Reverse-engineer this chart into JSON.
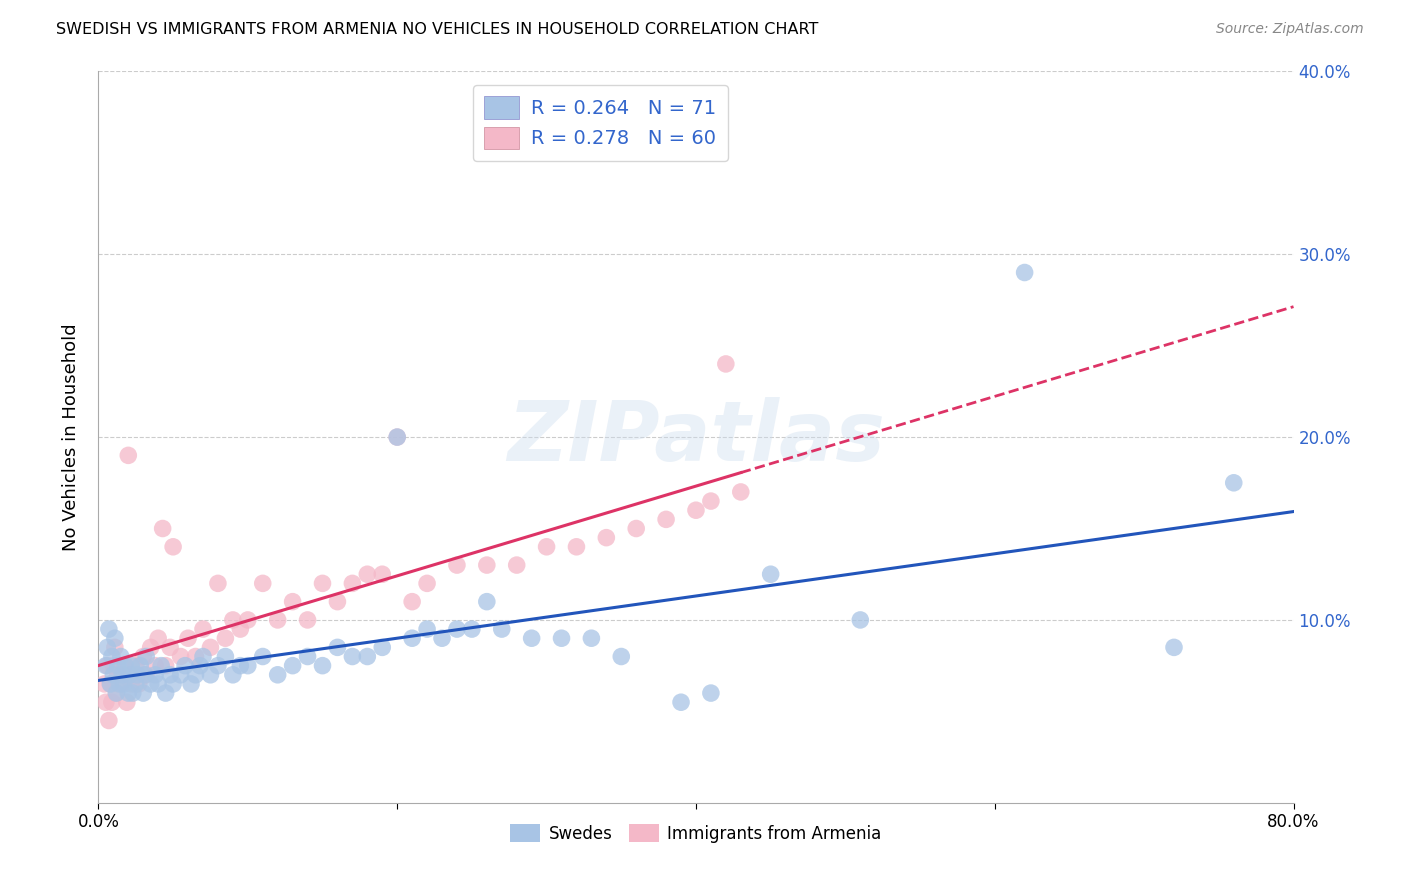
{
  "title": "SWEDISH VS IMMIGRANTS FROM ARMENIA NO VEHICLES IN HOUSEHOLD CORRELATION CHART",
  "source": "Source: ZipAtlas.com",
  "ylabel": "No Vehicles in Household",
  "xlim": [
    0,
    0.8
  ],
  "ylim": [
    0,
    0.4
  ],
  "xticks": [
    0.0,
    0.2,
    0.4,
    0.6,
    0.8
  ],
  "xticklabels_ends": {
    "0.0": "0.0%",
    "0.8": "80.0%"
  },
  "yticks": [
    0.0,
    0.1,
    0.2,
    0.3,
    0.4
  ],
  "right_yticklabels": [
    "",
    "10.0%",
    "20.0%",
    "30.0%",
    "40.0%"
  ],
  "blue_R": 0.264,
  "blue_N": 71,
  "pink_R": 0.278,
  "pink_N": 60,
  "blue_color": "#a8c4e5",
  "pink_color": "#f4b8c8",
  "blue_line_color": "#2255bb",
  "pink_line_color": "#dd3366",
  "legend_blue_label": "Swedes",
  "legend_pink_label": "Immigrants from Armenia",
  "watermark_text": "ZIPatlas",
  "grid_color": "#cccccc",
  "tick_label_color": "#3366cc",
  "blue_scatter_x": [
    0.005,
    0.006,
    0.007,
    0.008,
    0.009,
    0.01,
    0.011,
    0.012,
    0.013,
    0.014,
    0.015,
    0.016,
    0.017,
    0.018,
    0.02,
    0.021,
    0.022,
    0.023,
    0.025,
    0.026,
    0.028,
    0.03,
    0.031,
    0.032,
    0.035,
    0.038,
    0.04,
    0.042,
    0.045,
    0.048,
    0.05,
    0.055,
    0.058,
    0.062,
    0.065,
    0.068,
    0.07,
    0.075,
    0.08,
    0.085,
    0.09,
    0.095,
    0.1,
    0.11,
    0.12,
    0.13,
    0.14,
    0.15,
    0.16,
    0.17,
    0.18,
    0.19,
    0.2,
    0.21,
    0.22,
    0.23,
    0.24,
    0.25,
    0.26,
    0.27,
    0.29,
    0.31,
    0.33,
    0.35,
    0.39,
    0.41,
    0.45,
    0.51,
    0.62,
    0.72,
    0.76
  ],
  "blue_scatter_y": [
    0.075,
    0.085,
    0.095,
    0.065,
    0.08,
    0.07,
    0.09,
    0.06,
    0.075,
    0.065,
    0.08,
    0.07,
    0.065,
    0.075,
    0.06,
    0.07,
    0.075,
    0.06,
    0.065,
    0.07,
    0.075,
    0.06,
    0.07,
    0.08,
    0.065,
    0.07,
    0.065,
    0.075,
    0.06,
    0.07,
    0.065,
    0.07,
    0.075,
    0.065,
    0.07,
    0.075,
    0.08,
    0.07,
    0.075,
    0.08,
    0.07,
    0.075,
    0.075,
    0.08,
    0.07,
    0.075,
    0.08,
    0.075,
    0.085,
    0.08,
    0.08,
    0.085,
    0.2,
    0.09,
    0.095,
    0.09,
    0.095,
    0.095,
    0.11,
    0.095,
    0.09,
    0.09,
    0.09,
    0.08,
    0.055,
    0.06,
    0.125,
    0.1,
    0.29,
    0.085,
    0.175
  ],
  "pink_scatter_x": [
    0.004,
    0.005,
    0.006,
    0.007,
    0.008,
    0.009,
    0.01,
    0.011,
    0.012,
    0.013,
    0.015,
    0.017,
    0.019,
    0.02,
    0.022,
    0.025,
    0.027,
    0.03,
    0.032,
    0.035,
    0.038,
    0.04,
    0.043,
    0.045,
    0.048,
    0.05,
    0.055,
    0.06,
    0.065,
    0.07,
    0.075,
    0.08,
    0.085,
    0.09,
    0.095,
    0.1,
    0.11,
    0.12,
    0.13,
    0.14,
    0.15,
    0.16,
    0.17,
    0.18,
    0.19,
    0.2,
    0.21,
    0.22,
    0.24,
    0.26,
    0.28,
    0.3,
    0.32,
    0.34,
    0.36,
    0.38,
    0.4,
    0.41,
    0.42,
    0.43
  ],
  "pink_scatter_y": [
    0.065,
    0.055,
    0.075,
    0.045,
    0.065,
    0.055,
    0.075,
    0.085,
    0.06,
    0.07,
    0.065,
    0.075,
    0.055,
    0.19,
    0.065,
    0.075,
    0.065,
    0.08,
    0.07,
    0.085,
    0.075,
    0.09,
    0.15,
    0.075,
    0.085,
    0.14,
    0.08,
    0.09,
    0.08,
    0.095,
    0.085,
    0.12,
    0.09,
    0.1,
    0.095,
    0.1,
    0.12,
    0.1,
    0.11,
    0.1,
    0.12,
    0.11,
    0.12,
    0.125,
    0.125,
    0.2,
    0.11,
    0.12,
    0.13,
    0.13,
    0.13,
    0.14,
    0.14,
    0.145,
    0.15,
    0.155,
    0.16,
    0.165,
    0.24,
    0.17
  ]
}
